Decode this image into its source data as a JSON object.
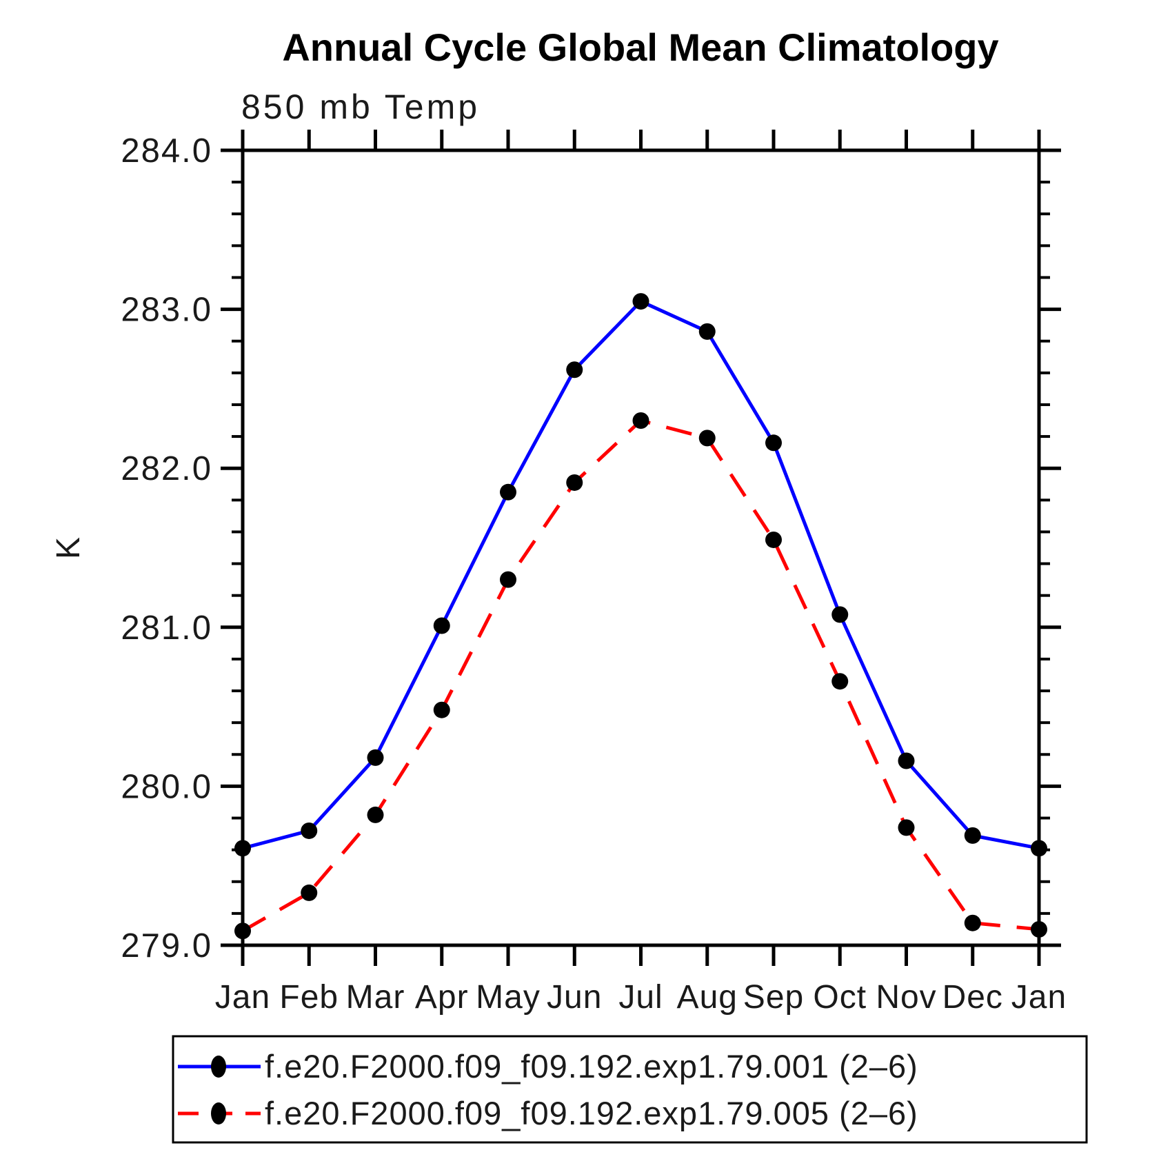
{
  "title": "Annual Cycle Global Mean Climatology",
  "subtitle": "850 mb Temp",
  "chart_data": {
    "type": "line",
    "title": "Annual Cycle Global Mean Climatology",
    "subtitle": "850 mb Temp",
    "xlabel": "",
    "ylabel": "K",
    "categories": [
      "Jan",
      "Feb",
      "Mar",
      "Apr",
      "May",
      "Jun",
      "Jul",
      "Aug",
      "Sep",
      "Oct",
      "Nov",
      "Dec",
      "Jan"
    ],
    "ylim": [
      279.0,
      284.0
    ],
    "y_major_step": 1.0,
    "y_minor_step": 0.2,
    "y_tick_labels": [
      "279.0",
      "280.0",
      "281.0",
      "282.0",
      "283.0",
      "284.0"
    ],
    "grid": false,
    "legend_position": "bottom",
    "series": [
      {
        "label": "f.e20.F2000.f09_f09.192.exp1.79.001 (2–6)",
        "color": "#0000ff",
        "line_style": "solid",
        "marker": "filled-circle",
        "marker_color": "#000000",
        "values": [
          279.61,
          279.72,
          280.18,
          281.01,
          281.85,
          282.62,
          283.05,
          282.86,
          282.16,
          281.08,
          280.16,
          279.69,
          279.61
        ]
      },
      {
        "label": "f.e20.F2000.f09_f09.192.exp1.79.005 (2–6)",
        "color": "#ff0000",
        "line_style": "dashed",
        "marker": "filled-circle",
        "marker_color": "#000000",
        "values": [
          279.09,
          279.33,
          279.82,
          280.48,
          281.3,
          281.91,
          282.3,
          282.19,
          281.55,
          280.66,
          279.74,
          279.14,
          279.1
        ]
      }
    ]
  },
  "colors": {
    "axis": "#000000",
    "background": "#ffffff",
    "series_blue": "#0000ff",
    "series_red": "#ff0000",
    "marker": "#000000"
  }
}
